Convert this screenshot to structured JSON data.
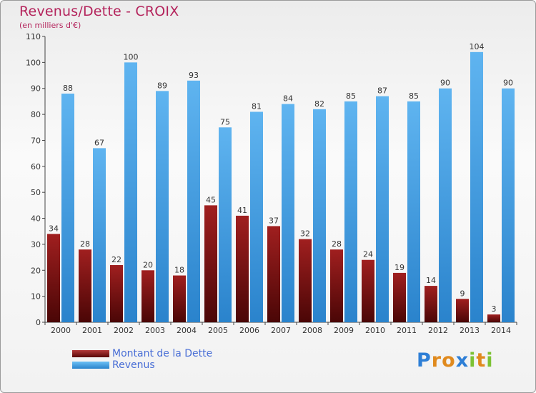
{
  "chart_data": {
    "type": "bar",
    "title": "Revenus/Dette - CROIX",
    "subtitle": "(en milliers d'€)",
    "categories": [
      "2000",
      "2001",
      "2002",
      "2003",
      "2004",
      "2005",
      "2006",
      "2007",
      "2008",
      "2009",
      "2010",
      "2011",
      "2012",
      "2013",
      "2014"
    ],
    "series": [
      {
        "name": "Montant de la Dette",
        "color": "#7a1212",
        "values": [
          34,
          28,
          22,
          20,
          18,
          45,
          41,
          37,
          32,
          28,
          24,
          19,
          14,
          9,
          3
        ]
      },
      {
        "name": "Revenus",
        "color": "#3d9be0",
        "values": [
          88,
          67,
          100,
          89,
          93,
          75,
          81,
          84,
          82,
          85,
          87,
          85,
          90,
          104,
          90
        ]
      }
    ],
    "yticks": [
      0,
      10,
      20,
      30,
      40,
      50,
      60,
      70,
      80,
      90,
      100,
      110
    ],
    "ylim": [
      0,
      110
    ],
    "grid": false,
    "legend_position": "bottom-left"
  },
  "logo": {
    "letters": [
      {
        "ch": "P",
        "color": "#2e7fd6"
      },
      {
        "ch": "r",
        "color": "#e08a1e"
      },
      {
        "ch": "o",
        "color": "#e08a1e"
      },
      {
        "ch": "x",
        "color": "#2e7fd6"
      },
      {
        "ch": "i",
        "color": "#7cc234"
      },
      {
        "ch": "t",
        "color": "#e08a1e"
      },
      {
        "ch": "i",
        "color": "#7cc234"
      }
    ]
  }
}
